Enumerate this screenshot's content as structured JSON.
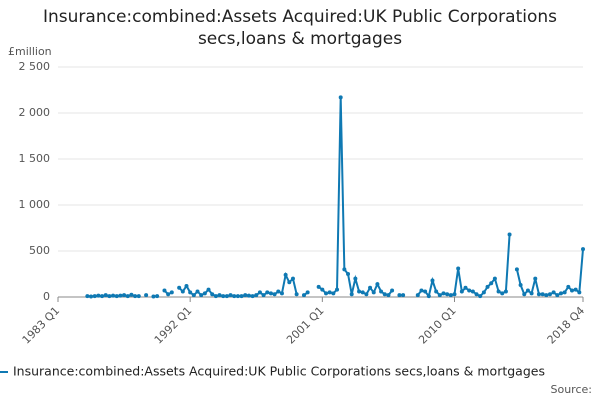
{
  "chart_data": {
    "type": "line",
    "title": "Insurance:combined:Assets Acquired:UK Public Corporations secs,loans & mortgages",
    "y_label": "£million",
    "source": "Source:",
    "categories": [
      "1983 Q1",
      null,
      null,
      null,
      null,
      null,
      null,
      null,
      null,
      null,
      null,
      null,
      null,
      null,
      null,
      null,
      null,
      null,
      null,
      null,
      null,
      null,
      null,
      null,
      null,
      null,
      null,
      null,
      null,
      null,
      null,
      null,
      null,
      null,
      null,
      null,
      "1992 Q1",
      null,
      null,
      null,
      null,
      null,
      null,
      null,
      null,
      null,
      null,
      null,
      null,
      null,
      null,
      null,
      null,
      null,
      null,
      null,
      null,
      null,
      null,
      null,
      null,
      null,
      null,
      null,
      null,
      null,
      null,
      null,
      null,
      null,
      null,
      null,
      "2001 Q1",
      null,
      null,
      null,
      null,
      null,
      null,
      null,
      null,
      null,
      null,
      null,
      null,
      null,
      null,
      null,
      null,
      null,
      null,
      null,
      null,
      null,
      null,
      null,
      null,
      null,
      null,
      null,
      null,
      null,
      null,
      null,
      null,
      null,
      null,
      null,
      "2010 Q1",
      null,
      null,
      null,
      null,
      null,
      null,
      null,
      null,
      null,
      null,
      null,
      null,
      null,
      null,
      null,
      null,
      null,
      null,
      null,
      null,
      null,
      null,
      null,
      null,
      null,
      null,
      null,
      null,
      null,
      null,
      null,
      null,
      null,
      null,
      "2018 Q4"
    ],
    "series": [
      {
        "name": "Insurance:combined:Assets Acquired:UK Public Corporations secs,loans & mortgages",
        "color": "#0f79b3",
        "values": [
          null,
          null,
          null,
          null,
          null,
          null,
          null,
          null,
          10,
          5,
          10,
          15,
          10,
          20,
          10,
          15,
          10,
          15,
          20,
          10,
          25,
          10,
          10,
          null,
          20,
          null,
          5,
          10,
          null,
          70,
          30,
          50,
          null,
          100,
          60,
          120,
          50,
          20,
          60,
          20,
          40,
          80,
          30,
          10,
          20,
          10,
          10,
          20,
          10,
          10,
          10,
          20,
          15,
          10,
          20,
          50,
          20,
          50,
          40,
          30,
          60,
          40,
          240,
          160,
          200,
          30,
          null,
          20,
          50,
          null,
          null,
          110,
          80,
          40,
          50,
          40,
          80,
          2170,
          300,
          250,
          30,
          200,
          60,
          50,
          30,
          100,
          50,
          140,
          60,
          30,
          20,
          70,
          null,
          20,
          20,
          null,
          null,
          null,
          20,
          70,
          60,
          10,
          180,
          60,
          20,
          40,
          30,
          20,
          30,
          310,
          60,
          100,
          70,
          60,
          30,
          10,
          50,
          110,
          150,
          200,
          60,
          40,
          60,
          680,
          null,
          300,
          130,
          30,
          70,
          40,
          200,
          30,
          30,
          20,
          30,
          50,
          20,
          40,
          50,
          110,
          70,
          80,
          50,
          520
        ]
      }
    ],
    "ylim": [
      0,
      2500
    ],
    "yticks": [
      0,
      {
        "value": 500,
        "label": "500"
      },
      {
        "value": 1000,
        "label": "1 000"
      },
      {
        "value": 1500,
        "label": "1 500"
      },
      {
        "value": 2000,
        "label": "2 000"
      },
      {
        "value": 2500,
        "label": "2 500"
      }
    ],
    "grid": true
  }
}
